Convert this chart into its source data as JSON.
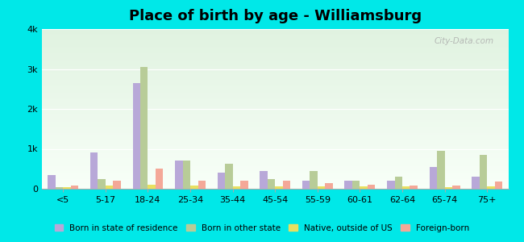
{
  "title": "Place of birth by age - Williamsburg",
  "categories": [
    "<5",
    "5-17",
    "18-24",
    "25-34",
    "35-44",
    "45-54",
    "55-59",
    "60-61",
    "62-64",
    "65-74",
    "75+"
  ],
  "series": {
    "Born in state of residence": [
      350,
      900,
      2650,
      700,
      400,
      450,
      200,
      200,
      200,
      550,
      300
    ],
    "Born in other state": [
      50,
      250,
      3050,
      700,
      620,
      250,
      450,
      200,
      300,
      950,
      850
    ],
    "Native, outside of US": [
      50,
      80,
      100,
      80,
      60,
      60,
      60,
      60,
      60,
      50,
      60
    ],
    "Foreign-born": [
      80,
      200,
      500,
      200,
      200,
      200,
      150,
      100,
      80,
      80,
      180
    ]
  },
  "colors": {
    "Born in state of residence": "#b8a8d8",
    "Born in other state": "#b8cc98",
    "Native, outside of US": "#e8e060",
    "Foreign-born": "#f4a898"
  },
  "ylim": [
    0,
    4000
  ],
  "yticks": [
    0,
    1000,
    2000,
    3000,
    4000
  ],
  "ytick_labels": [
    "0",
    "1k",
    "2k",
    "3k",
    "4k"
  ],
  "background_color": "#00e8e8",
  "plot_bg_colors": [
    "#e0f2e0",
    "#f0faf0"
  ],
  "watermark": "City-Data.com",
  "bar_width": 0.18,
  "grid_color": "#ffffff",
  "title_fontsize": 13
}
